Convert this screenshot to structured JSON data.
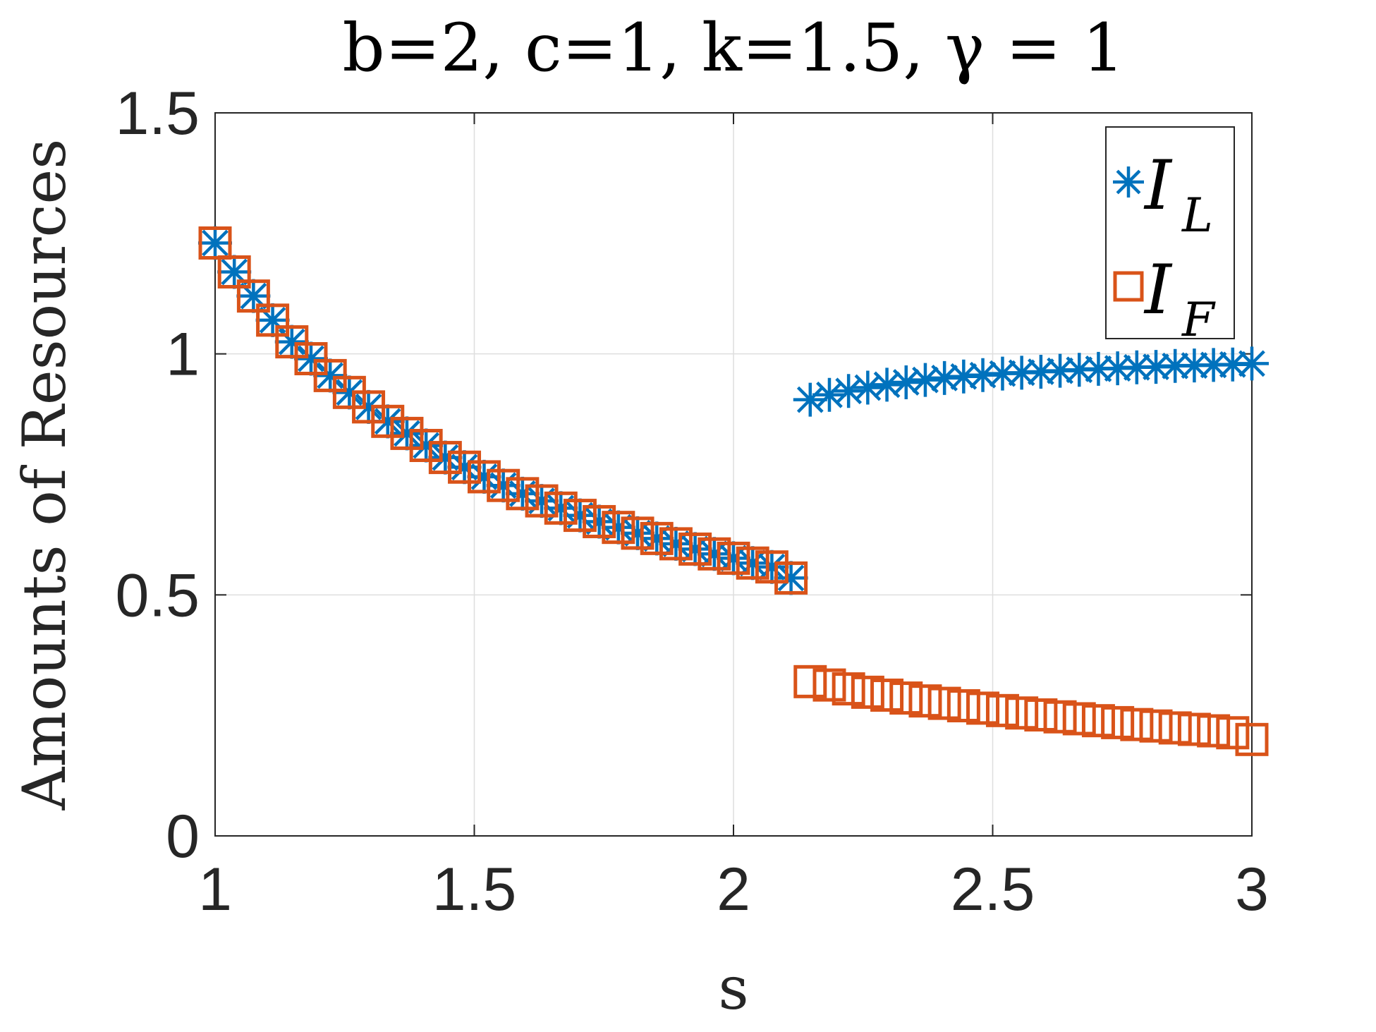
{
  "chart_data": {
    "type": "scatter",
    "title": "b=2, c=1, k=1.5, γ = 1",
    "xlabel": "s",
    "ylabel": "Amounts of Resources",
    "xlim": [
      1,
      3
    ],
    "ylim": [
      0,
      1.5
    ],
    "x_ticks": [
      "1",
      "1.5",
      "2",
      "2.5",
      "3"
    ],
    "y_ticks": [
      "0",
      "0.5",
      "1",
      "1.5"
    ],
    "grid": true,
    "legend_position": "top-right",
    "series": [
      {
        "name": "I_L",
        "label_main": "I",
        "label_sub": "L",
        "marker": "asterisk",
        "color": "#0072BD",
        "x": [
          1.0,
          1.037,
          1.074,
          1.111,
          1.148,
          1.185,
          1.222,
          1.259,
          1.296,
          1.333,
          1.37,
          1.407,
          1.444,
          1.481,
          1.519,
          1.556,
          1.593,
          1.63,
          1.667,
          1.704,
          1.741,
          1.778,
          1.815,
          1.852,
          1.889,
          1.926,
          1.963,
          2.0,
          2.037,
          2.074,
          2.111,
          2.148,
          2.185,
          2.222,
          2.259,
          2.296,
          2.333,
          2.37,
          2.407,
          2.444,
          2.481,
          2.519,
          2.556,
          2.593,
          2.63,
          2.667,
          2.704,
          2.741,
          2.778,
          2.815,
          2.852,
          2.889,
          2.926,
          2.963,
          3.0
        ],
        "y": [
          1.23,
          1.17,
          1.12,
          1.07,
          1.025,
          0.99,
          0.955,
          0.92,
          0.89,
          0.86,
          0.835,
          0.81,
          0.785,
          0.765,
          0.745,
          0.727,
          0.71,
          0.695,
          0.68,
          0.665,
          0.652,
          0.64,
          0.628,
          0.617,
          0.606,
          0.595,
          0.585,
          0.576,
          0.566,
          0.558,
          0.535,
          0.905,
          0.915,
          0.923,
          0.93,
          0.936,
          0.941,
          0.946,
          0.95,
          0.953,
          0.956,
          0.959,
          0.961,
          0.963,
          0.965,
          0.967,
          0.969,
          0.97,
          0.972,
          0.973,
          0.975,
          0.976,
          0.977,
          0.978,
          0.98
        ]
      },
      {
        "name": "I_F",
        "label_main": "I",
        "label_sub": "F",
        "marker": "square",
        "color": "#D95319",
        "x": [
          1.0,
          1.037,
          1.074,
          1.111,
          1.148,
          1.185,
          1.222,
          1.259,
          1.296,
          1.333,
          1.37,
          1.407,
          1.444,
          1.481,
          1.519,
          1.556,
          1.593,
          1.63,
          1.667,
          1.704,
          1.741,
          1.778,
          1.815,
          1.852,
          1.889,
          1.926,
          1.963,
          2.0,
          2.037,
          2.074,
          2.111,
          2.148,
          2.185,
          2.222,
          2.259,
          2.296,
          2.333,
          2.37,
          2.407,
          2.444,
          2.481,
          2.519,
          2.556,
          2.593,
          2.63,
          2.667,
          2.704,
          2.741,
          2.778,
          2.815,
          2.852,
          2.889,
          2.926,
          2.963,
          3.0
        ],
        "y": [
          1.23,
          1.17,
          1.12,
          1.07,
          1.025,
          0.99,
          0.955,
          0.92,
          0.89,
          0.86,
          0.835,
          0.81,
          0.785,
          0.765,
          0.745,
          0.727,
          0.71,
          0.695,
          0.68,
          0.665,
          0.652,
          0.64,
          0.628,
          0.617,
          0.606,
          0.595,
          0.585,
          0.576,
          0.566,
          0.558,
          0.535,
          0.32,
          0.313,
          0.305,
          0.298,
          0.292,
          0.286,
          0.28,
          0.275,
          0.27,
          0.265,
          0.26,
          0.255,
          0.251,
          0.247,
          0.243,
          0.239,
          0.235,
          0.231,
          0.228,
          0.224,
          0.221,
          0.218,
          0.214,
          0.2
        ]
      }
    ]
  }
}
